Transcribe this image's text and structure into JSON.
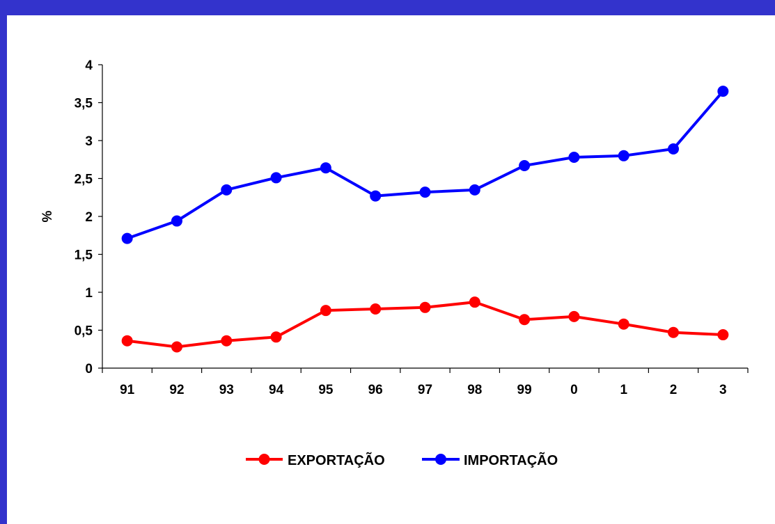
{
  "chart_data": {
    "type": "line",
    "categories": [
      "91",
      "92",
      "93",
      "94",
      "95",
      "96",
      "97",
      "98",
      "99",
      "0",
      "1",
      "2",
      "3"
    ],
    "series": [
      {
        "name": "EXPORTAÇÃO",
        "color": "#ff0000",
        "values": [
          0.36,
          0.28,
          0.36,
          0.41,
          0.76,
          0.78,
          0.8,
          0.87,
          0.64,
          0.68,
          0.58,
          0.47,
          0.44
        ]
      },
      {
        "name": "IMPORTAÇÃO",
        "color": "#0000ff",
        "values": [
          1.71,
          1.94,
          2.35,
          2.51,
          2.64,
          2.27,
          2.32,
          2.35,
          2.67,
          2.78,
          2.8,
          2.89,
          3.65
        ]
      }
    ],
    "ylabel": "%",
    "xlabel": "",
    "ylim": [
      0,
      4
    ],
    "yticks": [
      "0",
      "0,5",
      "1",
      "1,5",
      "2",
      "2,5",
      "3",
      "3,5",
      "4"
    ],
    "grid": false,
    "legend_position": "bottom"
  },
  "colors": {
    "frame": "#3333cc",
    "background": "#ffffff"
  }
}
